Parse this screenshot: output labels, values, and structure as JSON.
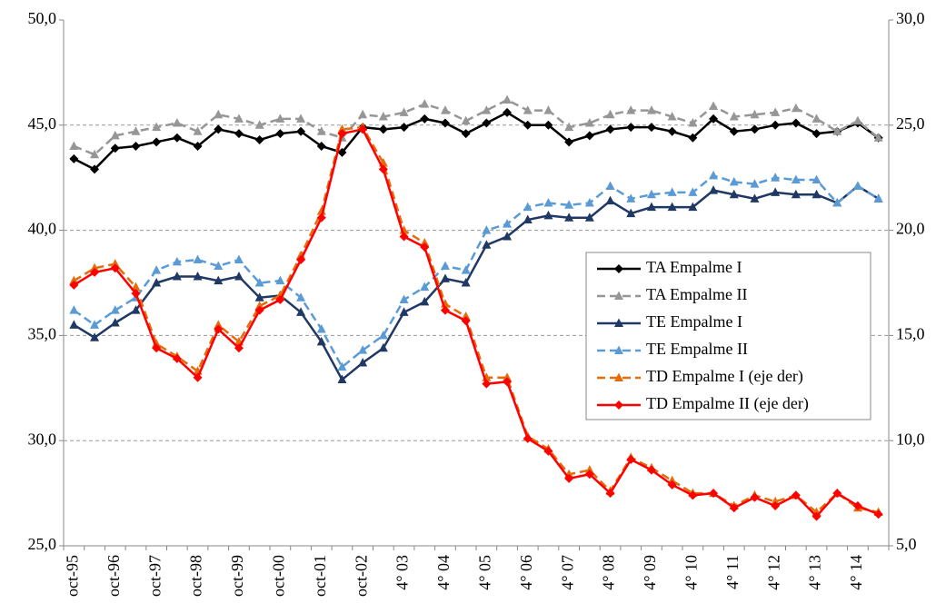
{
  "chart_data": {
    "type": "line",
    "categories": [
      "oct-95",
      null,
      "oct-96",
      null,
      "oct-97",
      null,
      "oct-98",
      null,
      "oct-99",
      null,
      "oct-00",
      null,
      "oct-01",
      null,
      "oct-02",
      null,
      "4° 03",
      null,
      "4° 04",
      null,
      "4° 05",
      null,
      "4° 06",
      null,
      "4° 07",
      null,
      "4° 08",
      null,
      "4° 09",
      null,
      "4° 10",
      null,
      "4° 11",
      null,
      "4° 12",
      null,
      "4° 13",
      null,
      "4° 14",
      null
    ],
    "ylim": [
      25,
      50
    ],
    "yticks": [
      {
        "value": 25,
        "label": "25,0"
      },
      {
        "value": 30,
        "label": "30,0"
      },
      {
        "value": 35,
        "label": "35,0"
      },
      {
        "value": 40,
        "label": "40,0"
      },
      {
        "value": 45,
        "label": "45,0"
      },
      {
        "value": 50,
        "label": "50,0"
      }
    ],
    "y2lim": [
      5,
      30
    ],
    "y2ticks": [
      {
        "value": 5,
        "label": "5,0"
      },
      {
        "value": 10,
        "label": "10,0"
      },
      {
        "value": 15,
        "label": "15,0"
      },
      {
        "value": 20,
        "label": "20,0"
      },
      {
        "value": 25,
        "label": "25,0"
      },
      {
        "value": 30,
        "label": "30,0"
      }
    ],
    "grid": true,
    "series": [
      {
        "name": "TA Empalme I",
        "color": "#000000",
        "dashed": false,
        "marker": "diamond",
        "values": [
          43.4,
          42.9,
          43.9,
          44.0,
          44.2,
          44.4,
          44.0,
          44.8,
          44.6,
          44.3,
          44.6,
          44.7,
          44.0,
          43.7,
          44.9,
          44.8,
          44.9,
          45.3,
          45.1,
          44.6,
          45.1,
          45.6,
          45.0,
          45.0,
          44.2,
          44.5,
          44.8,
          44.9,
          44.9,
          44.7,
          44.4,
          45.3,
          44.7,
          44.8,
          45.0,
          45.1,
          44.6,
          44.7,
          45.1,
          44.4
        ]
      },
      {
        "name": "TA Empalme II",
        "color": "#969696",
        "dashed": true,
        "marker": "triangle",
        "values": [
          44.0,
          43.6,
          44.5,
          44.7,
          44.9,
          45.1,
          44.7,
          45.5,
          45.3,
          45.0,
          45.3,
          45.3,
          44.7,
          44.4,
          45.5,
          45.4,
          45.6,
          46.0,
          45.7,
          45.2,
          45.7,
          46.2,
          45.7,
          45.7,
          44.9,
          45.1,
          45.5,
          45.7,
          45.7,
          45.4,
          45.1,
          45.9,
          45.4,
          45.5,
          45.6,
          45.8,
          45.3,
          44.7,
          45.2,
          44.4
        ]
      },
      {
        "name": "TE Empalme I",
        "color": "#1f3864",
        "dashed": false,
        "marker": "triangle",
        "values": [
          35.5,
          34.9,
          35.6,
          36.2,
          37.5,
          37.8,
          37.8,
          37.6,
          37.8,
          36.8,
          36.9,
          36.1,
          34.7,
          32.9,
          33.7,
          34.4,
          36.1,
          36.6,
          37.7,
          37.5,
          39.3,
          39.7,
          40.5,
          40.7,
          40.6,
          40.6,
          41.4,
          40.8,
          41.1,
          41.1,
          41.1,
          41.9,
          41.7,
          41.5,
          41.8,
          41.7,
          41.7,
          41.3,
          42.1,
          41.5
        ]
      },
      {
        "name": "TE Empalme II",
        "color": "#5b9bd5",
        "dashed": true,
        "marker": "triangle",
        "values": [
          36.2,
          35.5,
          36.2,
          36.8,
          38.1,
          38.5,
          38.6,
          38.3,
          38.6,
          37.5,
          37.6,
          36.8,
          35.3,
          33.5,
          34.3,
          35.0,
          36.7,
          37.3,
          38.3,
          38.1,
          40.0,
          40.3,
          41.1,
          41.3,
          41.2,
          41.3,
          42.1,
          41.5,
          41.7,
          41.8,
          41.8,
          42.6,
          42.3,
          42.2,
          42.5,
          42.4,
          42.4,
          41.3,
          42.1,
          41.5
        ]
      },
      {
        "name": "TD Empalme I (eje der)",
        "color": "#e46c0a",
        "dashed": true,
        "marker": "triangle",
        "axis": "y2",
        "values": [
          17.6,
          18.2,
          18.4,
          17.3,
          14.6,
          14.0,
          13.3,
          15.5,
          14.7,
          16.4,
          16.9,
          18.8,
          20.9,
          24.8,
          24.9,
          23.2,
          20.0,
          19.4,
          16.5,
          15.9,
          13.0,
          13.0,
          10.2,
          9.6,
          8.4,
          8.6,
          7.6,
          9.2,
          8.7,
          8.1,
          7.5,
          7.5,
          6.9,
          7.4,
          7.1,
          7.4,
          6.6,
          7.5,
          6.8,
          6.6
        ]
      },
      {
        "name": "TD Empalme II (eje der)",
        "color": "#ff0000",
        "dashed": false,
        "marker": "diamond",
        "axis": "y2",
        "values": [
          17.4,
          18.0,
          18.2,
          17.0,
          14.4,
          13.9,
          13.0,
          15.3,
          14.4,
          16.2,
          16.7,
          18.6,
          20.6,
          24.6,
          24.8,
          22.9,
          19.7,
          19.2,
          16.2,
          15.7,
          12.7,
          12.8,
          10.1,
          9.5,
          8.2,
          8.4,
          7.5,
          9.1,
          8.6,
          7.9,
          7.4,
          7.5,
          6.8,
          7.3,
          6.9,
          7.4,
          6.4,
          7.5,
          6.9,
          6.5
        ]
      }
    ]
  }
}
